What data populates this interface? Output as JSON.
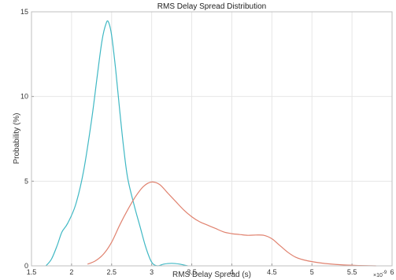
{
  "chart_data": {
    "type": "line",
    "title": "RMS Delay Spread Distribution",
    "xlabel": "RMS Delay Spread (s)",
    "ylabel": "Probability (%)",
    "x_exponent_label": "×10",
    "x_exponent_power": "-9",
    "xlim": [
      1.5,
      6
    ],
    "ylim": [
      0,
      15
    ],
    "xticks": [
      1.5,
      2,
      2.5,
      3,
      3.5,
      4,
      4.5,
      5,
      5.5,
      6
    ],
    "xtick_labels": [
      "1.5",
      "2",
      "2.5",
      "3",
      "3.5",
      "4",
      "4.5",
      "5",
      "5.5",
      "6"
    ],
    "yticks": [
      0,
      5,
      10,
      15
    ],
    "ytick_labels": [
      "0",
      "5",
      "10",
      "15"
    ],
    "grid": true,
    "series": [
      {
        "color": "#3fb8c4",
        "x": [
          1.68,
          1.75,
          1.82,
          1.88,
          1.95,
          2.05,
          2.15,
          2.25,
          2.32,
          2.38,
          2.43,
          2.46,
          2.5,
          2.55,
          2.6,
          2.65,
          2.7,
          2.78,
          2.85,
          2.92,
          2.98,
          3.02,
          3.08,
          3.15,
          3.25,
          3.35,
          3.45
        ],
        "y": [
          0,
          0.4,
          1.2,
          2.0,
          2.5,
          3.6,
          5.6,
          8.6,
          11.2,
          13.3,
          14.3,
          14.4,
          13.6,
          11.6,
          9.2,
          7.0,
          5.2,
          3.6,
          2.4,
          1.2,
          0.4,
          0.1,
          0.0,
          0.1,
          0.15,
          0.1,
          0.0
        ]
      },
      {
        "color": "#e0826f",
        "x": [
          2.2,
          2.3,
          2.4,
          2.5,
          2.6,
          2.7,
          2.8,
          2.9,
          3.0,
          3.1,
          3.2,
          3.3,
          3.4,
          3.5,
          3.6,
          3.7,
          3.8,
          3.9,
          4.0,
          4.1,
          4.2,
          4.3,
          4.4,
          4.5,
          4.6,
          4.7,
          4.8,
          4.9,
          5.0,
          5.2,
          5.4,
          5.6,
          5.8
        ],
        "y": [
          0.1,
          0.3,
          0.7,
          1.4,
          2.4,
          3.3,
          4.1,
          4.7,
          4.95,
          4.8,
          4.3,
          3.8,
          3.3,
          2.9,
          2.6,
          2.4,
          2.2,
          2.0,
          1.9,
          1.85,
          1.8,
          1.82,
          1.8,
          1.6,
          1.2,
          0.8,
          0.5,
          0.35,
          0.25,
          0.12,
          0.05,
          0.02,
          0.0
        ]
      }
    ]
  }
}
